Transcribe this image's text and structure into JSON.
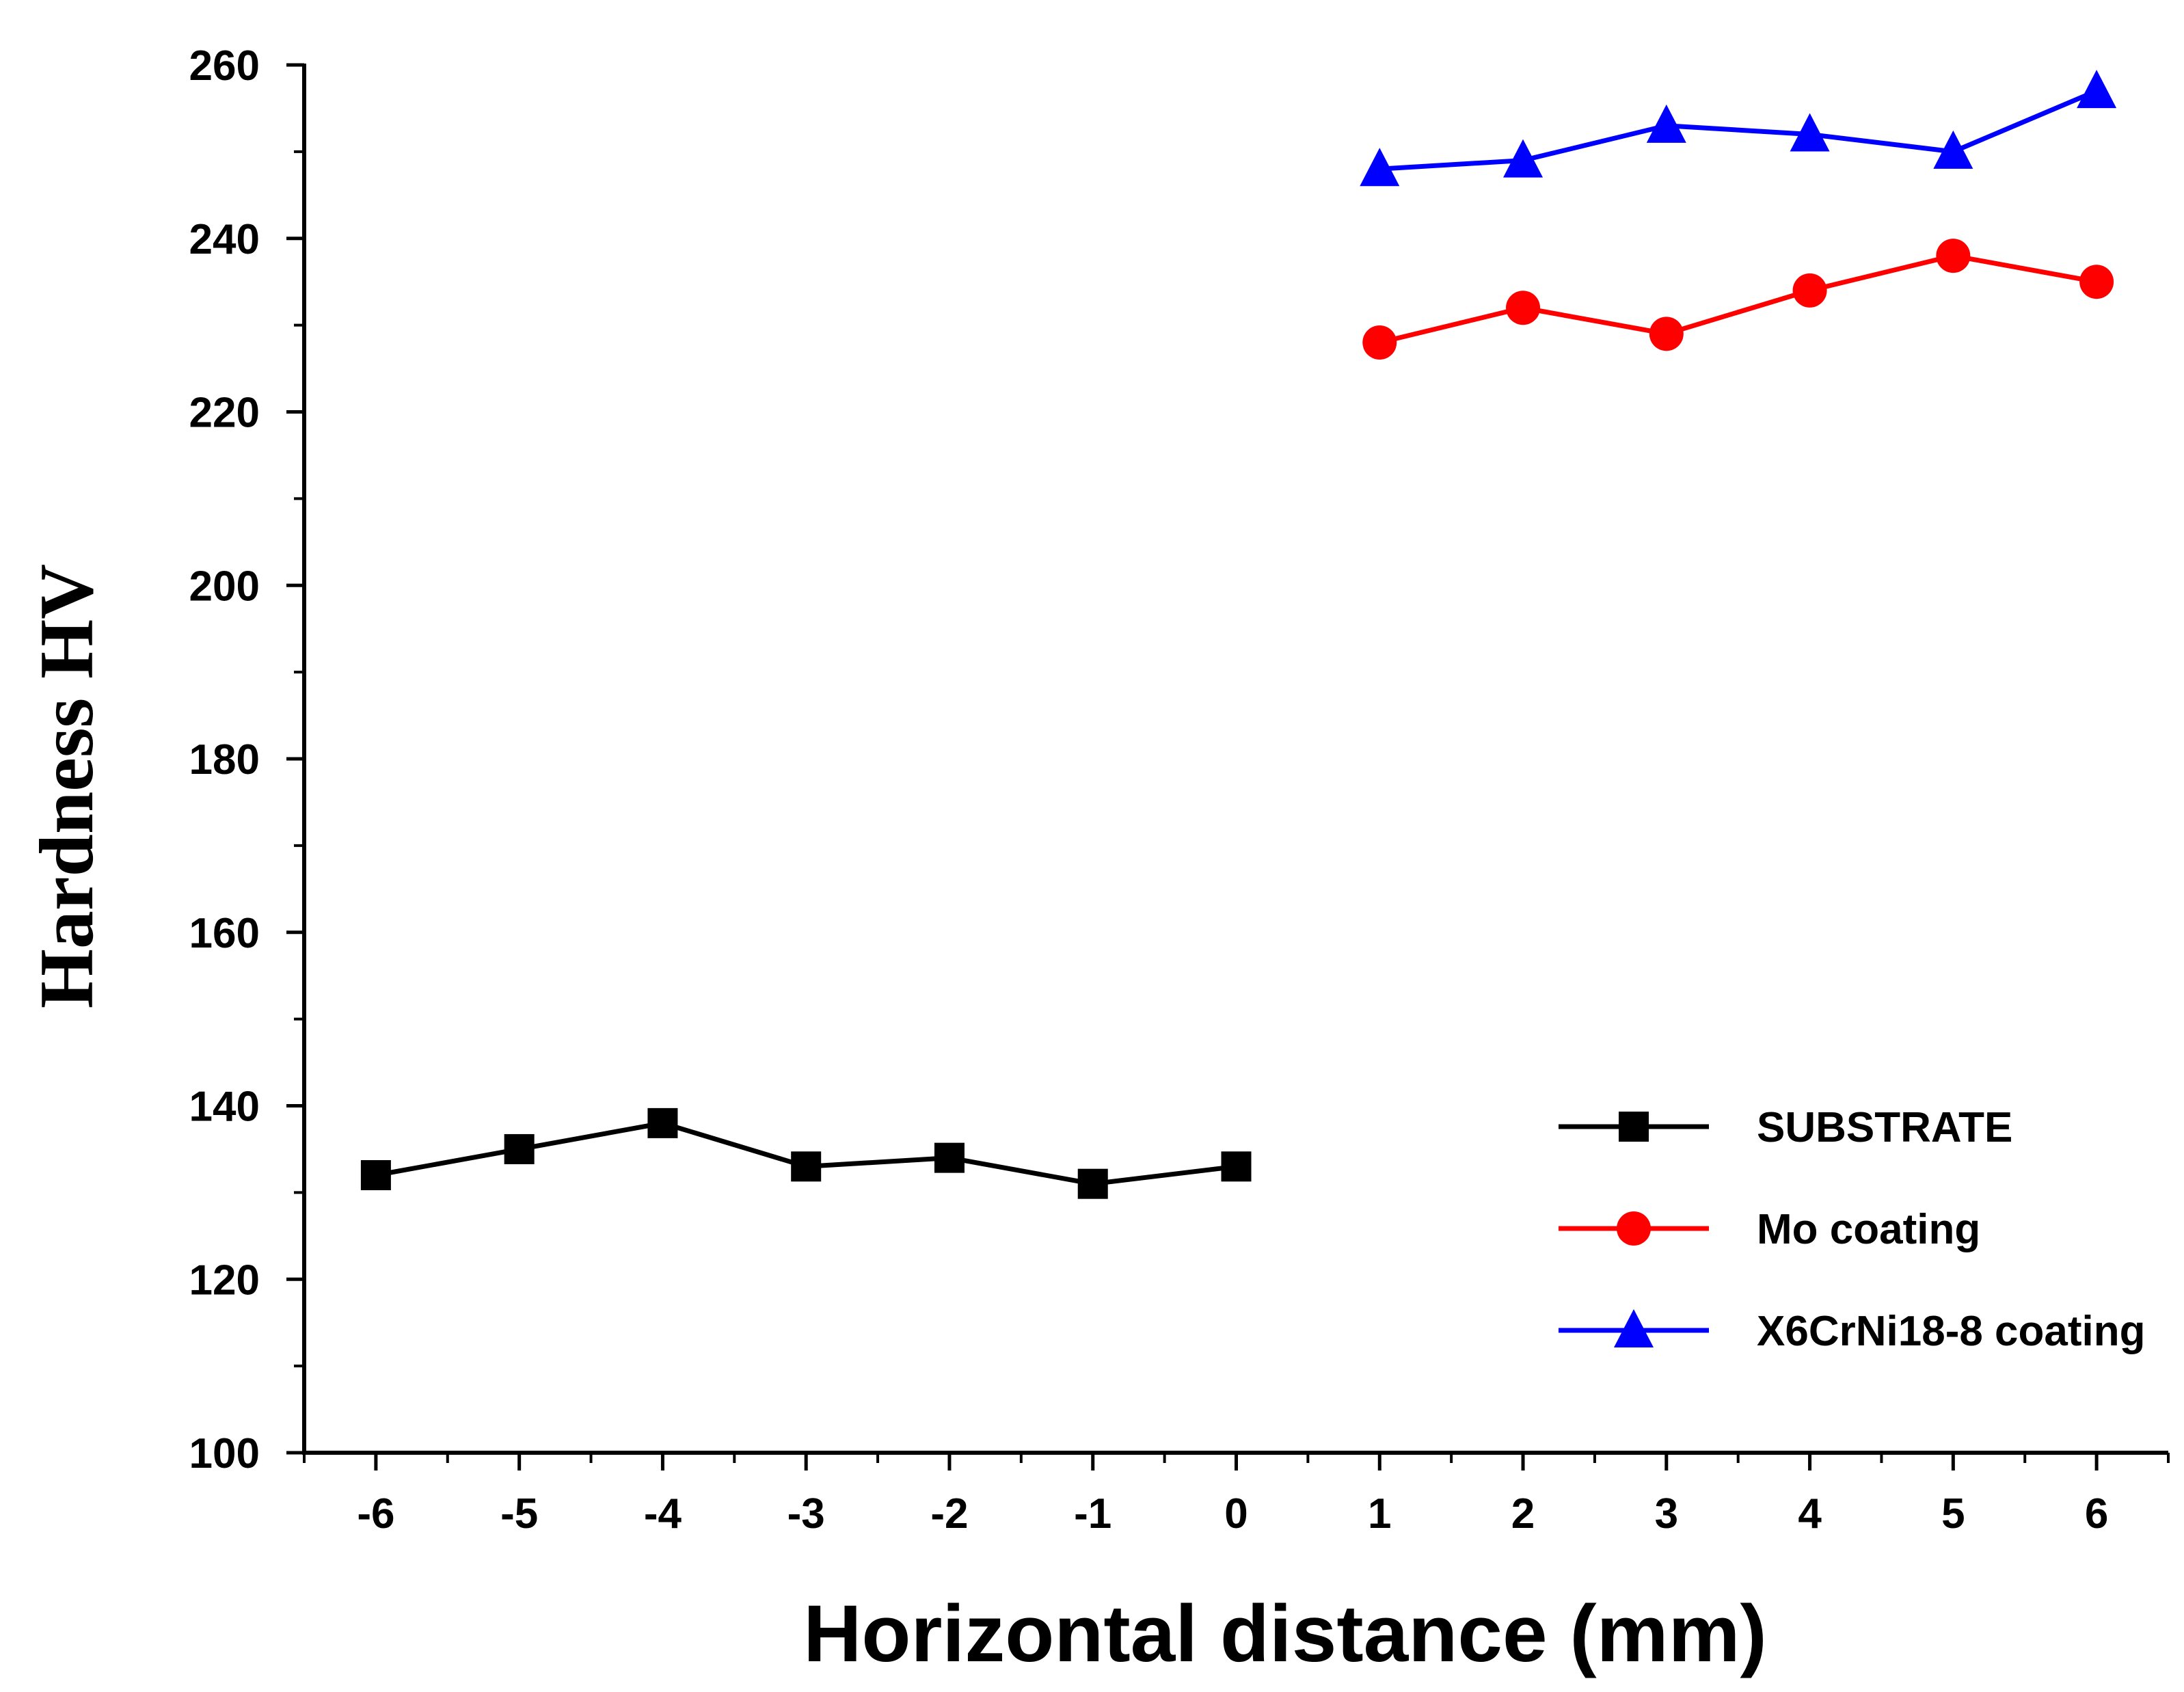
{
  "chart_data": {
    "type": "line",
    "title": "",
    "xlabel": "Horizontal distance (mm)",
    "ylabel": "Hardness HV",
    "xlim": [
      -6.5,
      6.5
    ],
    "ylim": [
      100,
      260
    ],
    "xticks": [
      -6,
      -5,
      -4,
      -3,
      -2,
      -1,
      0,
      1,
      2,
      3,
      4,
      5,
      6
    ],
    "xtick_labels": [
      "-6",
      "-5",
      "-4",
      "-3",
      "-2",
      "-1",
      "0",
      "1",
      "2",
      "3",
      "4",
      "5",
      "6"
    ],
    "yticks": [
      100,
      120,
      140,
      160,
      180,
      200,
      220,
      240,
      260
    ],
    "ytick_labels": [
      "100",
      "120",
      "140",
      "160",
      "180",
      "200",
      "220",
      "240",
      "260"
    ],
    "grid": false,
    "legend_position": "lower-right",
    "series": [
      {
        "name": "SUBSTRATE",
        "color": "#000000",
        "marker": "square",
        "x": [
          -6,
          -5,
          -4,
          -3,
          -2,
          -1,
          0
        ],
        "y": [
          132,
          135,
          138,
          133,
          134,
          131,
          133
        ]
      },
      {
        "name": "Mo coating",
        "color": "#ff0000",
        "marker": "circle",
        "x": [
          1,
          2,
          3,
          4,
          5,
          6
        ],
        "y": [
          228,
          232,
          229,
          234,
          238,
          235
        ]
      },
      {
        "name": "X6CrNi18-8 coating",
        "color": "#0000ff",
        "marker": "triangle",
        "x": [
          1,
          2,
          3,
          4,
          5,
          6
        ],
        "y": [
          248,
          249,
          253,
          252,
          250,
          257
        ]
      }
    ]
  }
}
